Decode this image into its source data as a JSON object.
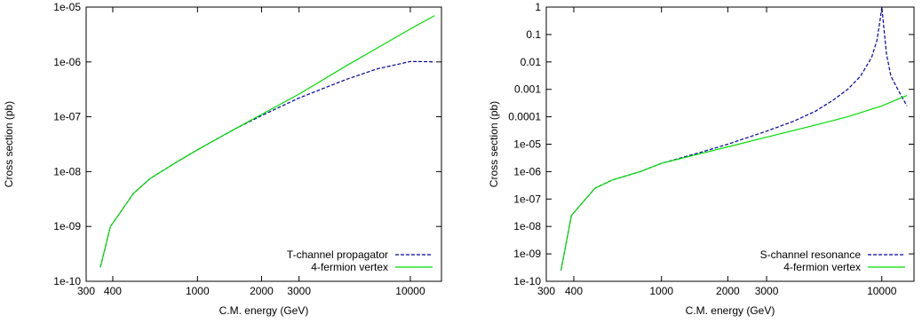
{
  "chart_data": [
    {
      "type": "line",
      "xlabel": "C.M. energy (GeV)",
      "ylabel": "Cross section (pb)",
      "xscale": "log",
      "yscale": "log",
      "xlim": [
        300,
        14000
      ],
      "ylim": [
        1e-10,
        1e-05
      ],
      "xticks": [
        300,
        400,
        1000,
        2000,
        3000,
        10000
      ],
      "xtick_labels": [
        "300",
        "400",
        "1000",
        "2000",
        "3000",
        "10000"
      ],
      "yticks": [
        1e-10,
        1e-09,
        1e-08,
        1e-07,
        1e-06,
        1e-05
      ],
      "ytick_labels": [
        "1e-10",
        "1e-09",
        "1e-08",
        "1e-07",
        "1e-06",
        "1e-05"
      ],
      "grid": false,
      "legend_position": "bottom-right",
      "series": [
        {
          "name": "T-channel propagator",
          "color": "#0000a0",
          "style": "dashed",
          "x": [
            350,
            390,
            420,
            500,
            600,
            800,
            1000,
            1500,
            2000,
            3000,
            5000,
            7000,
            10000,
            12000,
            13000
          ],
          "y": [
            1.8e-10,
            1e-09,
            1.5e-09,
            4e-09,
            7.5e-09,
            1.5e-08,
            2.5e-08,
            6e-08,
            1.05e-07,
            2.2e-07,
            4.8e-07,
            7.5e-07,
            1.02e-06,
            1.01e-06,
            1e-06
          ]
        },
        {
          "name": "4-fermion vertex",
          "color": "#00dd00",
          "style": "solid",
          "x": [
            350,
            390,
            420,
            500,
            600,
            800,
            1000,
            1500,
            2000,
            3000,
            5000,
            7000,
            10000,
            13000
          ],
          "y": [
            1.8e-10,
            1e-09,
            1.5e-09,
            4e-09,
            7.5e-09,
            1.5e-08,
            2.5e-08,
            6e-08,
            1.1e-07,
            2.6e-07,
            8.5e-07,
            1.8e-06,
            4e-06,
            7e-06
          ]
        }
      ]
    },
    {
      "type": "line",
      "xlabel": "C.M. energy (GeV)",
      "ylabel": "Cross section (pb)",
      "xscale": "log",
      "yscale": "log",
      "xlim": [
        300,
        14000
      ],
      "ylim": [
        1e-10,
        1
      ],
      "xticks": [
        300,
        400,
        1000,
        2000,
        3000,
        10000
      ],
      "xtick_labels": [
        "300",
        "400",
        "1000",
        "2000",
        "3000",
        "10000"
      ],
      "yticks": [
        1e-10,
        1e-09,
        1e-08,
        1e-07,
        1e-06,
        1e-05,
        0.0001,
        0.001,
        0.01,
        0.1,
        1
      ],
      "ytick_labels": [
        "1e-10",
        "1e-09",
        "1e-08",
        "1e-07",
        "1e-06",
        "1e-05",
        "0.0001",
        "0.001",
        "0.01",
        "0.1",
        "1"
      ],
      "grid": false,
      "legend_position": "bottom-right",
      "series": [
        {
          "name": "S-channel resonance",
          "color": "#0000a0",
          "style": "dashed",
          "x": [
            350,
            390,
            420,
            500,
            600,
            800,
            1000,
            1500,
            2000,
            3000,
            4000,
            5000,
            6000,
            7000,
            8000,
            9000,
            9500,
            9800,
            10000,
            10200,
            10500,
            11000,
            12000,
            13000
          ],
          "y": [
            2.5e-10,
            2.5e-08,
            5e-08,
            2.5e-07,
            5e-07,
            1e-06,
            2e-06,
            5e-06,
            1e-05,
            3e-05,
            7e-05,
            0.00016,
            0.0004,
            0.001,
            0.003,
            0.015,
            0.06,
            0.3,
            1,
            0.2,
            0.02,
            0.003,
            0.0008,
            0.00025
          ]
        },
        {
          "name": "4-fermion vertex",
          "color": "#00dd00",
          "style": "solid",
          "x": [
            350,
            390,
            420,
            500,
            600,
            800,
            1000,
            1500,
            2000,
            3000,
            5000,
            7000,
            10000,
            13000
          ],
          "y": [
            2.5e-10,
            2.5e-08,
            5e-08,
            2.5e-07,
            5e-07,
            1e-06,
            2e-06,
            4.5e-06,
            8e-06,
            1.8e-05,
            5e-05,
            0.0001,
            0.00025,
            0.0006
          ]
        }
      ]
    }
  ]
}
